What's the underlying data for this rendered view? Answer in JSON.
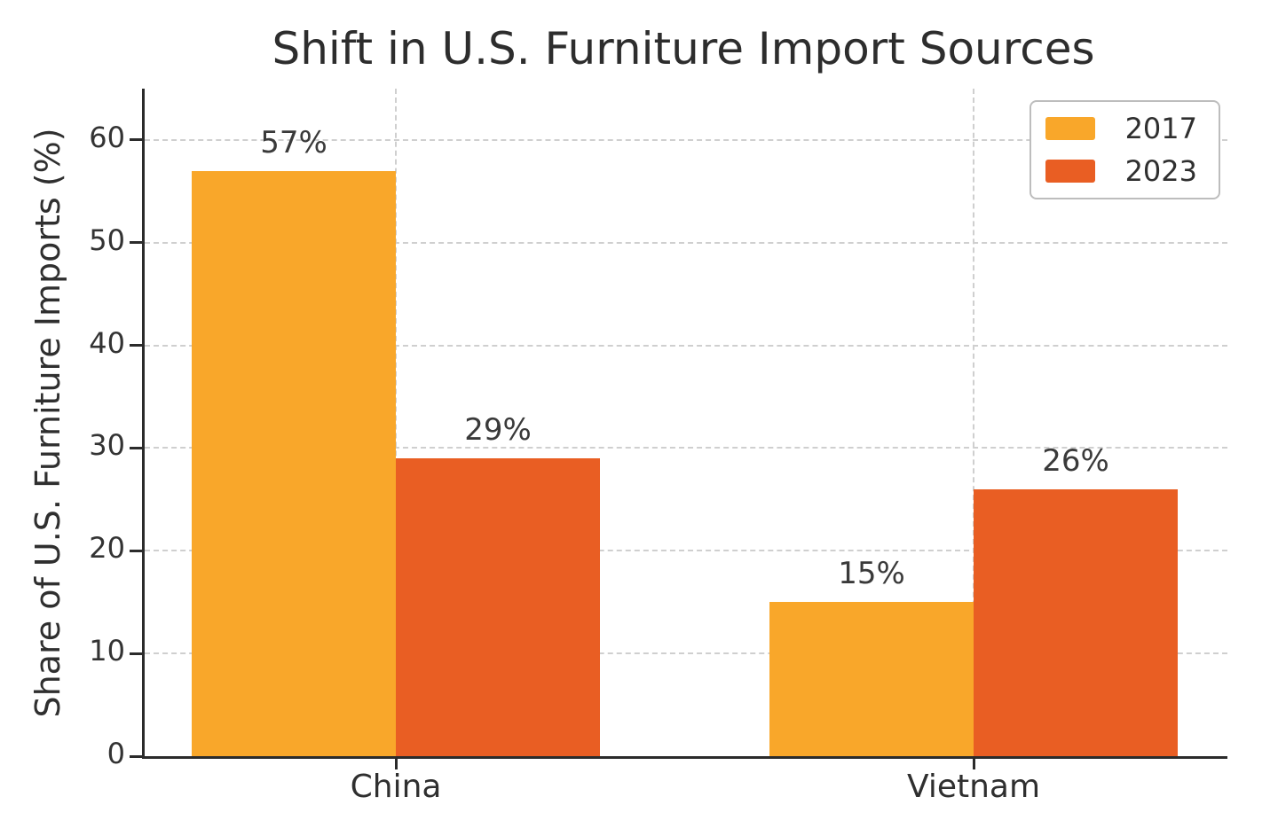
{
  "chart_data": {
    "type": "bar",
    "title": "Shift in U.S. Furniture Import Sources",
    "ylabel": "Share of U.S. Furniture Imports (%)",
    "xlabel": "",
    "categories": [
      "China",
      "Vietnam"
    ],
    "series": [
      {
        "name": "2017",
        "color": "#F9A72A",
        "values": [
          57,
          15
        ],
        "data_labels": [
          "57%",
          "15%"
        ]
      },
      {
        "name": "2023",
        "color": "#E95E23",
        "values": [
          29,
          26
        ],
        "data_labels": [
          "29%",
          "26%"
        ]
      }
    ],
    "y_ticks": [
      0,
      10,
      20,
      30,
      40,
      50,
      60
    ],
    "ylim": [
      0,
      65
    ],
    "grid": true,
    "legend_position": "upper right",
    "colors": {
      "axis": "#2b2b2b",
      "gridline": "#cfcfcf",
      "text": "#333333",
      "background": "#ffffff"
    }
  }
}
